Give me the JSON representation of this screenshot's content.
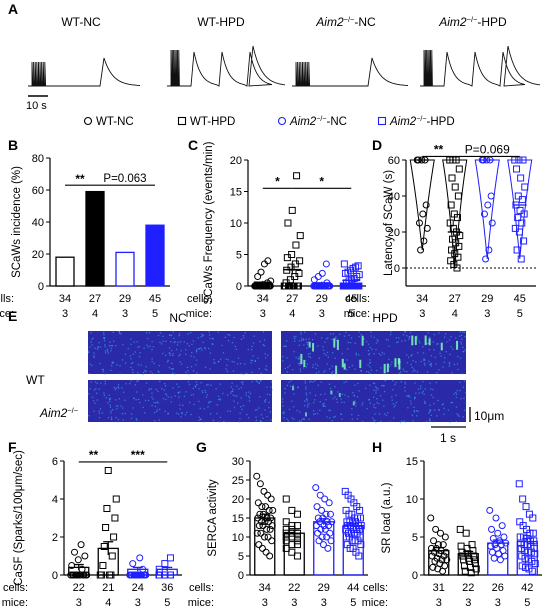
{
  "colors": {
    "black": "#000000",
    "blue": "#1f1fff",
    "raster_bg": "#2a2aa8",
    "raster_dot": "#3fb8ff",
    "raster_spark": "#7cffb8"
  },
  "panels": {
    "A": {
      "letter": "A",
      "trace_titles": [
        {
          "prefix": "WT",
          "sup": "",
          "suffix": "-NC",
          "italic": false
        },
        {
          "prefix": "WT",
          "sup": "",
          "suffix": "-HPD",
          "italic": false
        },
        {
          "prefix": "Aim2",
          "sup": "−/−",
          "suffix": "-NC",
          "italic": true
        },
        {
          "prefix": "Aim2",
          "sup": "−/−",
          "suffix": "-HPD",
          "italic": true
        }
      ],
      "scale_bar": "10 s"
    },
    "legend": [
      {
        "marker": "circle",
        "label_prefix": "WT",
        "label_sup": "",
        "label_suffix": "-NC",
        "color": "black",
        "italic": false
      },
      {
        "marker": "square",
        "label_prefix": "WT",
        "label_sup": "",
        "label_suffix": "-HPD",
        "color": "black",
        "italic": false
      },
      {
        "marker": "circle",
        "label_prefix": "Aim2",
        "label_sup": "−/−",
        "label_suffix": "-NC",
        "color": "blue",
        "italic": true
      },
      {
        "marker": "square",
        "label_prefix": "Aim2",
        "label_sup": "−/−",
        "label_suffix": "-HPD",
        "color": "blue",
        "italic": true
      }
    ],
    "E": {
      "letter": "E",
      "col_labels": [
        "NC",
        "HPD"
      ],
      "row_labels": [
        {
          "prefix": "WT",
          "sup": ""
        },
        {
          "prefix": "Aim2",
          "sup": "−/−"
        }
      ],
      "scale_v": "10μm",
      "scale_h": "1 s"
    }
  },
  "chart_data": [
    {
      "panel": "B",
      "type": "bar",
      "ylabel": "SCaWs incidence (%)",
      "ylim": [
        0,
        80
      ],
      "yticks": [
        0,
        20,
        40,
        60,
        80
      ],
      "categories": [
        "WT-NC",
        "WT-HPD",
        "Aim2-/--NC",
        "Aim2-/--HPD"
      ],
      "values": [
        18,
        59,
        21,
        38
      ],
      "fills": [
        "white",
        "black",
        "white",
        "blue"
      ],
      "edges": [
        "black",
        "black",
        "blue",
        "blue"
      ],
      "annotations": [
        {
          "from": 0,
          "to": 1,
          "text": "**"
        },
        {
          "from": 1,
          "to": 3,
          "text": "P=0.063"
        }
      ],
      "cells": [
        "34",
        "27",
        "29",
        "45"
      ],
      "mice": [
        "3",
        "4",
        "3",
        "5"
      ],
      "row_labels": {
        "cells": "cells:",
        "mice": "mice:"
      }
    },
    {
      "panel": "C",
      "type": "scatter",
      "ylabel": "SCaWs Frequency (events/min)",
      "ylim": [
        0,
        20
      ],
      "yticks": [
        0,
        5,
        10,
        15,
        20
      ],
      "categories": [
        "WT-NC",
        "WT-HPD",
        "Aim2-/--NC",
        "Aim2-/--HPD"
      ],
      "means": [
        0.6,
        2.6,
        0.5,
        0.9
      ],
      "sem": [
        0.2,
        0.8,
        0.2,
        0.3
      ],
      "points": [
        [
          0,
          0,
          0,
          0,
          0,
          0,
          0,
          0,
          0,
          0,
          0,
          0,
          0,
          0,
          0,
          0,
          0,
          0,
          0,
          0,
          0,
          0,
          0,
          0,
          0,
          0,
          0,
          0,
          0.5,
          0.8,
          1.5,
          2.2,
          3.5,
          4.0
        ],
        [
          0,
          0,
          0,
          0,
          0,
          0,
          0,
          0,
          0,
          0,
          0,
          0,
          0.5,
          1.0,
          1.5,
          2.0,
          2.5,
          3.0,
          3.5,
          4.0,
          4.5,
          5.0,
          6.5,
          8.0,
          10.0,
          12.0,
          17.5
        ],
        [
          0,
          0,
          0,
          0,
          0,
          0,
          0,
          0,
          0,
          0,
          0,
          0,
          0,
          0,
          0,
          0,
          0,
          0,
          0,
          0,
          0,
          0,
          0,
          0,
          0.5,
          1.0,
          1.5,
          2.0,
          3.5
        ],
        [
          0,
          0,
          0,
          0,
          0,
          0,
          0,
          0,
          0,
          0,
          0,
          0,
          0,
          0,
          0,
          0,
          0,
          0,
          0,
          0,
          0,
          0,
          0,
          0,
          0,
          0,
          0,
          0.5,
          0.8,
          1.0,
          1.2,
          1.5,
          1.8,
          2.0,
          2.2,
          2.5,
          2.8,
          3.0,
          3.2,
          3.5,
          0,
          0,
          0,
          0,
          0
        ]
      ],
      "annotations": [
        {
          "from": 0,
          "to": 1,
          "text": "*"
        },
        {
          "from": 1,
          "to": 3,
          "text": "*"
        }
      ],
      "cells": [
        "34",
        "27",
        "29",
        "45"
      ],
      "mice": [
        "3",
        "4",
        "3",
        "5"
      ],
      "row_labels": {
        "cells": "cells:",
        "mice": "mice:"
      }
    },
    {
      "panel": "D",
      "type": "violin",
      "ylabel": "Latency of SCaW (s)",
      "ylim": [
        -10,
        60
      ],
      "yticks": [
        0,
        20,
        40,
        60
      ],
      "categories": [
        "WT-NC",
        "WT-HPD",
        "Aim2-/--NC",
        "Aim2-/--HPD"
      ],
      "points": [
        [
          60,
          60,
          60,
          60,
          35,
          30,
          25,
          22,
          15,
          10
        ],
        [
          60,
          60,
          60,
          55,
          50,
          45,
          40,
          35,
          30,
          28,
          25,
          22,
          20,
          18,
          16,
          14,
          12,
          10,
          8,
          6,
          4,
          2,
          0
        ],
        [
          60,
          60,
          60,
          60,
          40,
          35,
          30,
          25,
          10,
          5
        ],
        [
          60,
          60,
          60,
          55,
          50,
          45,
          40,
          38,
          35,
          32,
          30,
          28,
          25,
          22,
          20,
          15,
          10,
          5
        ]
      ],
      "medians": [
        60,
        20,
        60,
        35
      ],
      "annotations": [
        {
          "from": 0,
          "to": 1,
          "text": "**"
        },
        {
          "from": 1,
          "to": 3,
          "text": "P=0.069"
        }
      ],
      "cells": [
        "34",
        "27",
        "29",
        "45"
      ],
      "mice": [
        "3",
        "4",
        "3",
        "5"
      ],
      "row_labels": {
        "cells": "cells:",
        "mice": "mice:"
      }
    },
    {
      "panel": "F",
      "type": "bar_scatter",
      "ylabel": "CaSF (Sparks/100μm/sec)",
      "ylim": [
        0,
        6
      ],
      "yticks": [
        0,
        2,
        4,
        6
      ],
      "categories": [
        "WT-NC",
        "WT-HPD",
        "Aim2-/--NC",
        "Aim2-/--HPD"
      ],
      "values": [
        0.4,
        1.4,
        0.3,
        0.3
      ],
      "sem": [
        0.15,
        0.35,
        0.1,
        0.1
      ],
      "points": [
        [
          0,
          0,
          0,
          0,
          0,
          0,
          0,
          0,
          0,
          0,
          0,
          0,
          0.3,
          0.5,
          0.8,
          1.0,
          1.2,
          1.6
        ],
        [
          0,
          0,
          0,
          0,
          0.5,
          1.0,
          1.5,
          2.0,
          2.5,
          3.0,
          3.5,
          4.0,
          5.5
        ],
        [
          0,
          0,
          0,
          0,
          0,
          0,
          0,
          0,
          0,
          0,
          0,
          0,
          0,
          0,
          0.3,
          0.6,
          0.9
        ],
        [
          0,
          0,
          0,
          0,
          0,
          0,
          0,
          0,
          0,
          0,
          0,
          0,
          0,
          0,
          0,
          0,
          0,
          0,
          0.3,
          0.6,
          0.9
        ]
      ],
      "annotations": [
        {
          "from": 0,
          "to": 1,
          "text": "**"
        },
        {
          "from": 1,
          "to": 3,
          "text": "***"
        }
      ],
      "cells": [
        "22",
        "21",
        "24",
        "36"
      ],
      "mice": [
        "3",
        "4",
        "3",
        "5"
      ],
      "row_labels": {
        "cells": "cells:",
        "mice": "mice:"
      }
    },
    {
      "panel": "G",
      "type": "bar_scatter",
      "ylabel": "SERCA activity",
      "ylim": [
        0,
        30
      ],
      "yticks": [
        0,
        5,
        10,
        15,
        20,
        25,
        30
      ],
      "categories": [
        "WT-NC",
        "WT-HPD",
        "Aim2-/--NC",
        "Aim2-/--HPD"
      ],
      "values": [
        15,
        11,
        14,
        13
      ],
      "sem": [
        1.0,
        0.8,
        0.8,
        0.6
      ],
      "points": [
        [
          26,
          24,
          22,
          21,
          20,
          19,
          18,
          18,
          17,
          17,
          16,
          16,
          15,
          15,
          15,
          14,
          14,
          14,
          13,
          13,
          13,
          12,
          12,
          11,
          11,
          10,
          10,
          9,
          8,
          7,
          6,
          5
        ],
        [
          20,
          17,
          16,
          14,
          13,
          13,
          12,
          12,
          11,
          11,
          11,
          10,
          10,
          10,
          9,
          9,
          8,
          8,
          7,
          6,
          5
        ],
        [
          23,
          21,
          20,
          19,
          18,
          17,
          16,
          16,
          15,
          15,
          14,
          14,
          14,
          13,
          13,
          13,
          12,
          12,
          11,
          11,
          10,
          10,
          9,
          9,
          8,
          7
        ],
        [
          22,
          21,
          20,
          19,
          18,
          17,
          17,
          16,
          16,
          15,
          15,
          15,
          14,
          14,
          14,
          14,
          13,
          13,
          13,
          13,
          12,
          12,
          12,
          12,
          11,
          11,
          11,
          11,
          10,
          10,
          10,
          9,
          9,
          9,
          8,
          8,
          7,
          7,
          6,
          5
        ]
      ],
      "cells": [
        "34",
        "22",
        "29",
        "44"
      ],
      "mice": [
        "3",
        "3",
        "3",
        "5"
      ],
      "row_labels": {
        "cells": "cells:",
        "mice": "mice:"
      }
    },
    {
      "panel": "H",
      "type": "bar_scatter",
      "ylabel": "SR load (a.u.)",
      "ylim": [
        0,
        15
      ],
      "yticks": [
        0,
        5,
        10,
        15
      ],
      "categories": [
        "WT-NC",
        "WT-HPD",
        "Aim2-/--NC",
        "Aim2-/--HPD"
      ],
      "values": [
        3.2,
        2.8,
        4.2,
        4.4
      ],
      "sem": [
        0.4,
        0.3,
        0.4,
        0.4
      ],
      "points": [
        [
          7.5,
          6.0,
          5.5,
          5.0,
          4.5,
          4.0,
          4.0,
          3.5,
          3.5,
          3.2,
          3.0,
          3.0,
          2.8,
          2.5,
          2.5,
          2.2,
          2.0,
          2.0,
          1.8,
          1.5,
          1.2,
          1.0,
          0.8,
          0.5
        ],
        [
          6.0,
          5.5,
          4.0,
          3.8,
          3.5,
          3.2,
          3.0,
          2.8,
          2.5,
          2.5,
          2.2,
          2.0,
          2.0,
          1.8,
          1.5,
          1.2,
          1.0,
          0.8,
          0.5,
          0.3
        ],
        [
          8.5,
          7.5,
          6.5,
          6.0,
          5.5,
          5.0,
          4.8,
          4.5,
          4.2,
          4.0,
          4.0,
          3.8,
          3.5,
          3.2,
          3.0,
          2.8,
          2.5,
          2.2,
          2.0
        ],
        [
          12.0,
          10.0,
          9.0,
          8.0,
          7.5,
          7.0,
          6.5,
          6.0,
          5.5,
          5.5,
          5.0,
          5.0,
          4.8,
          4.5,
          4.5,
          4.2,
          4.0,
          4.0,
          3.8,
          3.5,
          3.5,
          3.2,
          3.0,
          3.0,
          2.8,
          2.5,
          2.2,
          2.0,
          1.8,
          1.5,
          1.2,
          1.0,
          0.8,
          0.5
        ]
      ],
      "cells": [
        "31",
        "22",
        "26",
        "42"
      ],
      "mice": [
        "3",
        "3",
        "3",
        "5"
      ],
      "row_labels": {
        "cells": "cells:",
        "mice": "mice:"
      }
    }
  ]
}
